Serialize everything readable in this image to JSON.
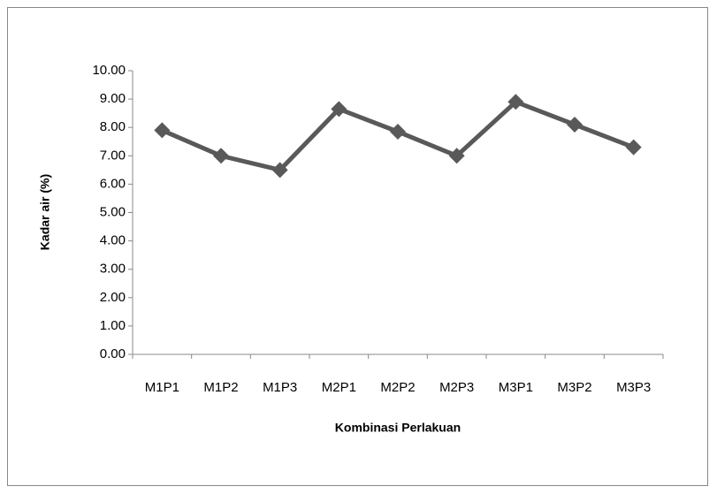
{
  "chart_data": {
    "type": "line",
    "x_label": "Kombinasi Perlakuan",
    "y_label": "Kadar air (%)",
    "categories": [
      "M1P1",
      "M1P2",
      "M1P3",
      "M2P1",
      "M2P2",
      "M2P3",
      "M3P1",
      "M3P2",
      "M3P3"
    ],
    "values": [
      7.9,
      7.0,
      6.5,
      8.65,
      7.85,
      7.0,
      8.9,
      8.1,
      7.3
    ],
    "color": "#595959",
    "ylim": [
      0,
      10
    ],
    "yticks": [
      {
        "value": 0,
        "label": "0.00"
      },
      {
        "value": 1,
        "label": "1.00"
      },
      {
        "value": 2,
        "label": "2.00"
      },
      {
        "value": 3,
        "label": "3.00"
      },
      {
        "value": 4,
        "label": "4.00"
      },
      {
        "value": 5,
        "label": "5.00"
      },
      {
        "value": 6,
        "label": "6.00"
      },
      {
        "value": 7,
        "label": "7.00"
      },
      {
        "value": 8,
        "label": "8.00"
      },
      {
        "value": 9,
        "label": "9.00"
      },
      {
        "value": 10,
        "label": "10.00"
      }
    ],
    "grid": false
  }
}
